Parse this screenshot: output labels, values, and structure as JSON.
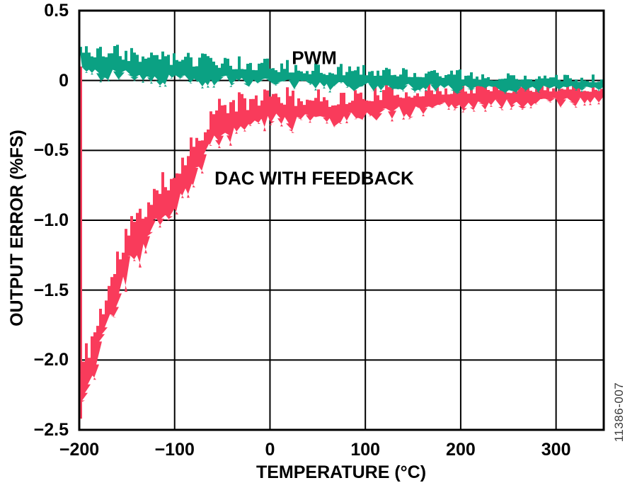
{
  "chart_data": {
    "type": "area",
    "title": "",
    "xlabel": "TEMPERATURE (°C)",
    "ylabel": "OUTPUT ERROR (%FS)",
    "xlim": [
      -200,
      350
    ],
    "ylim": [
      -2.5,
      0.5
    ],
    "grid": true,
    "legend_position": "inline-labels",
    "axis_color": "#000000",
    "background_color": "#ffffff",
    "watermark": "11386-007",
    "x_ticks": [
      {
        "v": -200,
        "label": "−200"
      },
      {
        "v": -100,
        "label": "−100"
      },
      {
        "v": 0,
        "label": "0"
      },
      {
        "v": 100,
        "label": "100"
      },
      {
        "v": 200,
        "label": "200"
      },
      {
        "v": 300,
        "label": "300"
      }
    ],
    "y_ticks": [
      {
        "v": 0.5,
        "label": "0.5"
      },
      {
        "v": 0,
        "label": "0"
      },
      {
        "v": -0.5,
        "label": "−0.5"
      },
      {
        "v": -1,
        "label": "−1.0"
      },
      {
        "v": -1.5,
        "label": "−1.5"
      },
      {
        "v": -2,
        "label": "−2.0"
      },
      {
        "v": -2.5,
        "label": "−2.5"
      }
    ],
    "series": [
      {
        "name": "PWM",
        "color": "#0ba183",
        "band_points": [
          [
            -200,
            0.13,
            0.11
          ],
          [
            -150,
            0.11,
            0.1
          ],
          [
            -100,
            0.08,
            0.09
          ],
          [
            -50,
            0.06,
            0.08
          ],
          [
            0,
            0.04,
            0.08
          ],
          [
            50,
            0.02,
            0.07
          ],
          [
            100,
            0.01,
            0.07
          ],
          [
            150,
            0.0,
            0.06
          ],
          [
            200,
            -0.01,
            0.06
          ],
          [
            250,
            -0.02,
            0.05
          ],
          [
            300,
            -0.02,
            0.05
          ],
          [
            350,
            -0.03,
            0.05
          ]
        ]
      },
      {
        "name": "DAC WITH FEEDBACK",
        "color": "#f93b5b",
        "start_spike": {
          "t": -200,
          "from": 0.1,
          "to": -2.42
        },
        "band_points": [
          [
            -200,
            -2.2,
            0.15
          ],
          [
            -195,
            -2.12,
            0.18
          ],
          [
            -190,
            -2.02,
            0.18
          ],
          [
            -185,
            -1.92,
            0.18
          ],
          [
            -180,
            -1.82,
            0.18
          ],
          [
            -175,
            -1.71,
            0.17
          ],
          [
            -170,
            -1.6,
            0.17
          ],
          [
            -165,
            -1.5,
            0.17
          ],
          [
            -160,
            -1.4,
            0.18
          ],
          [
            -155,
            -1.3,
            0.18
          ],
          [
            -150,
            -1.2,
            0.18
          ],
          [
            -145,
            -1.14,
            0.18
          ],
          [
            -140,
            -1.17,
            0.18
          ],
          [
            -135,
            -1.09,
            0.17
          ],
          [
            -130,
            -1.0,
            0.17
          ],
          [
            -125,
            -0.96,
            0.17
          ],
          [
            -120,
            -0.93,
            0.16
          ],
          [
            -115,
            -0.9,
            0.16
          ],
          [
            -110,
            -0.86,
            0.16
          ],
          [
            -105,
            -0.8,
            0.16
          ],
          [
            -100,
            -0.76,
            0.17
          ],
          [
            -95,
            -0.72,
            0.17
          ],
          [
            -90,
            -0.66,
            0.16
          ],
          [
            -85,
            -0.6,
            0.15
          ],
          [
            -80,
            -0.55,
            0.15
          ],
          [
            -75,
            -0.5,
            0.15
          ],
          [
            -70,
            -0.45,
            0.15
          ],
          [
            -65,
            -0.38,
            0.14
          ],
          [
            -60,
            -0.33,
            0.13
          ],
          [
            -55,
            -0.3,
            0.13
          ],
          [
            -50,
            -0.28,
            0.13
          ],
          [
            -40,
            -0.27,
            0.13
          ],
          [
            -30,
            -0.26,
            0.12
          ],
          [
            -20,
            -0.24,
            0.12
          ],
          [
            -10,
            -0.21,
            0.12
          ],
          [
            0,
            -0.18,
            0.11
          ],
          [
            10,
            -0.2,
            0.11
          ],
          [
            20,
            -0.22,
            0.11
          ],
          [
            30,
            -0.21,
            0.1
          ],
          [
            40,
            -0.2,
            0.1
          ],
          [
            60,
            -0.22,
            0.1
          ],
          [
            80,
            -0.2,
            0.1
          ],
          [
            100,
            -0.18,
            0.09
          ],
          [
            125,
            -0.16,
            0.09
          ],
          [
            150,
            -0.15,
            0.09
          ],
          [
            175,
            -0.13,
            0.08
          ],
          [
            200,
            -0.12,
            0.08
          ],
          [
            250,
            -0.11,
            0.07
          ],
          [
            300,
            -0.1,
            0.07
          ],
          [
            350,
            -0.1,
            0.06
          ]
        ]
      }
    ]
  }
}
